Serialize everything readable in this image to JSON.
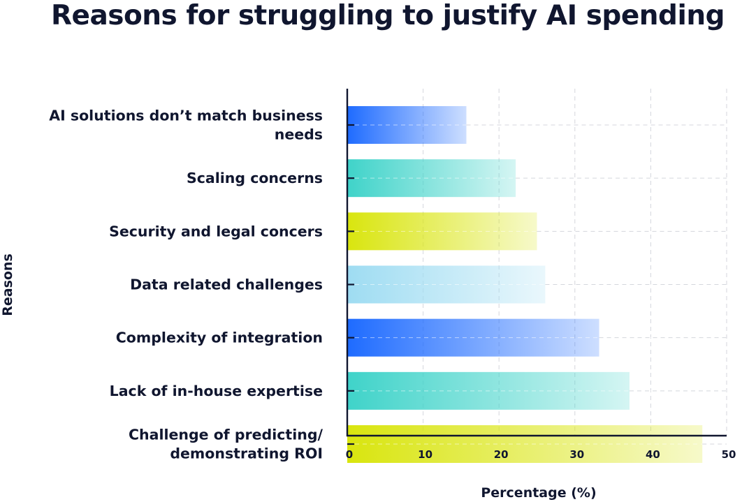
{
  "chart_data": {
    "type": "bar",
    "orientation": "horizontal",
    "title": "Reasons for struggling to justify AI spending",
    "xlabel": "Percentage (%)",
    "ylabel": "Reasons",
    "xlim": [
      0,
      50
    ],
    "xticks": [
      "0",
      "10",
      "20",
      "30",
      "40",
      "50"
    ],
    "grid": "dashed",
    "categories": [
      [
        "AI solutions don’t match business",
        "needs"
      ],
      [
        "Scaling concerns"
      ],
      [
        "Security and legal concers"
      ],
      [
        "Data related challenges"
      ],
      [
        "Complexity of integration"
      ],
      [
        "Lack of in-house expertise"
      ],
      [
        "Challenge of predicting/",
        "demonstrating ROI"
      ]
    ],
    "values": [
      15.7,
      22.2,
      25.0,
      26.1,
      33.2,
      37.2,
      46.8
    ],
    "colors": [
      "#1e6bff",
      "#3fd3c9",
      "#d9e50e",
      "#9edcf2",
      "#1e6bff",
      "#3fd3c9",
      "#d9e50e"
    ]
  }
}
